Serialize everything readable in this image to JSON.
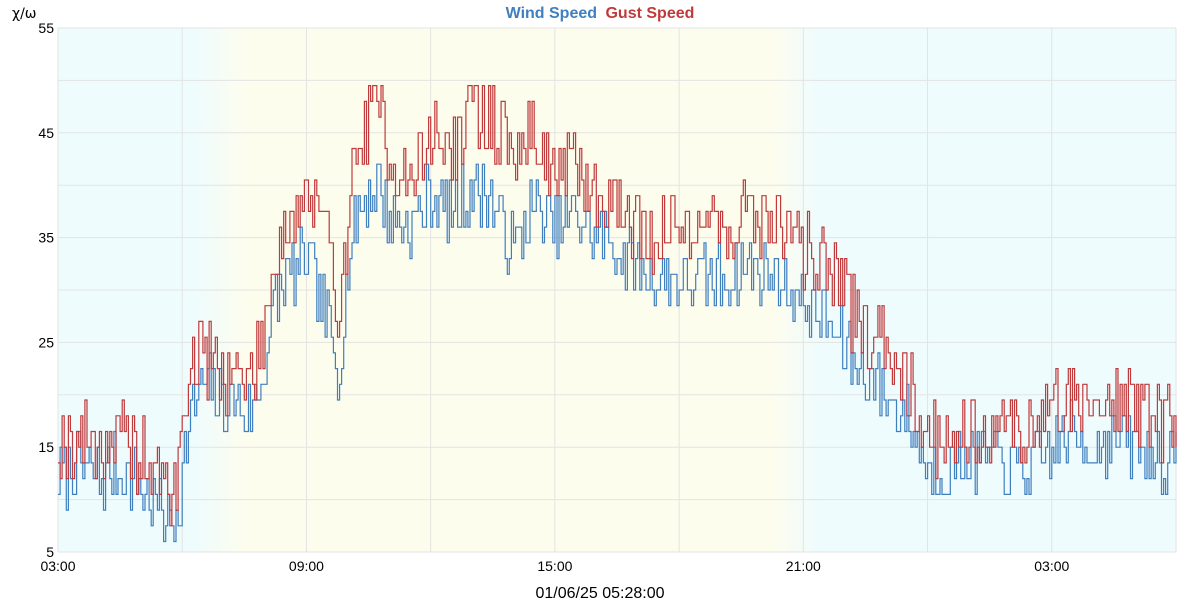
{
  "chart_data": {
    "type": "line",
    "title_parts": [
      "Wind Speed",
      "Gust Speed"
    ],
    "ylabel": "χ/ω",
    "footer": "01/06/25 05:28:00",
    "ylim": [
      5,
      55
    ],
    "yticks": [
      5,
      15,
      25,
      35,
      45,
      55
    ],
    "x_range_hours": [
      0,
      27
    ],
    "xticks": [
      {
        "hour": 0,
        "label": "03:00"
      },
      {
        "hour": 6,
        "label": "09:00"
      },
      {
        "hour": 12,
        "label": "15:00"
      },
      {
        "hour": 18,
        "label": "21:00"
      },
      {
        "hour": 24,
        "label": "03:00"
      }
    ],
    "daylight": {
      "sunrise_hour": 3.6,
      "sunset_hour": 17.8
    },
    "colors": {
      "wind": "#3f7fbf",
      "gust": "#c0393b",
      "night_bg": "#effcfd",
      "day_bg": "#fdfdee",
      "grid": "#e3e3e3"
    },
    "series": [
      {
        "name": "Wind Speed",
        "x": [
          0,
          0.5,
          1,
          1.5,
          2,
          2.5,
          2.7,
          2.9,
          3,
          3.25,
          3.5,
          3.75,
          4,
          4.25,
          4.5,
          4.75,
          5,
          5.25,
          5.5,
          6,
          6.5,
          6.75,
          7,
          7.25,
          7.5,
          7.75,
          8,
          8.5,
          9,
          9.5,
          10,
          10.5,
          11,
          11.5,
          12,
          12.5,
          13,
          13.5,
          14,
          14.5,
          15,
          15.5,
          16,
          16.5,
          17,
          17.5,
          17.75,
          18,
          18.5,
          19,
          19.5,
          20,
          20.5,
          21,
          21.5,
          22,
          22.5,
          23,
          23.5,
          24,
          24.5,
          25,
          25.5,
          26,
          26.5,
          27
        ],
        "y": [
          12,
          13,
          12,
          13,
          11,
          9,
          8,
          9,
          13,
          19,
          21,
          20,
          19,
          20,
          18,
          19,
          23,
          29,
          31,
          33,
          27,
          22,
          32,
          38,
          39,
          40,
          37,
          36,
          39,
          37,
          40,
          38,
          34,
          38,
          36,
          37,
          35,
          34,
          32,
          31,
          31,
          31,
          31,
          32,
          32,
          31,
          30,
          29,
          27,
          24,
          22,
          20,
          18,
          13,
          13,
          14,
          14,
          13,
          13,
          15,
          16,
          15,
          16,
          15,
          14,
          13
        ]
      },
      {
        "name": "Gust Speed",
        "x": [
          0,
          0.5,
          1,
          1.5,
          2,
          2.5,
          2.7,
          2.9,
          3,
          3.25,
          3.5,
          3.75,
          4,
          4.25,
          4.5,
          4.75,
          5,
          5.25,
          5.5,
          6,
          6.5,
          6.75,
          7,
          7.25,
          7.5,
          7.75,
          8,
          8.5,
          9,
          9.5,
          10,
          10.5,
          11,
          11.5,
          12,
          12.5,
          13,
          13.5,
          14,
          14.5,
          15,
          15.5,
          16,
          16.5,
          17,
          17.5,
          17.75,
          18,
          18.5,
          19,
          19.5,
          20,
          20.5,
          21,
          21.5,
          22,
          22.5,
          23,
          23.5,
          24,
          24.5,
          25,
          25.5,
          26,
          26.5,
          27
        ],
        "y": [
          15,
          16,
          15,
          16,
          14,
          12,
          11,
          12,
          18,
          23,
          24,
          23,
          22,
          23,
          21,
          22,
          27,
          34,
          36,
          39,
          35,
          28,
          37,
          44,
          46,
          48,
          43,
          40,
          45,
          43,
          47,
          46,
          43,
          45,
          41,
          42,
          39,
          38,
          36,
          35,
          36,
          37,
          36,
          37,
          37,
          36,
          35,
          34,
          33,
          29,
          26,
          25,
          22,
          16,
          16,
          17,
          17,
          17,
          16,
          19,
          20,
          19,
          20,
          19,
          18,
          17
        ]
      }
    ]
  }
}
